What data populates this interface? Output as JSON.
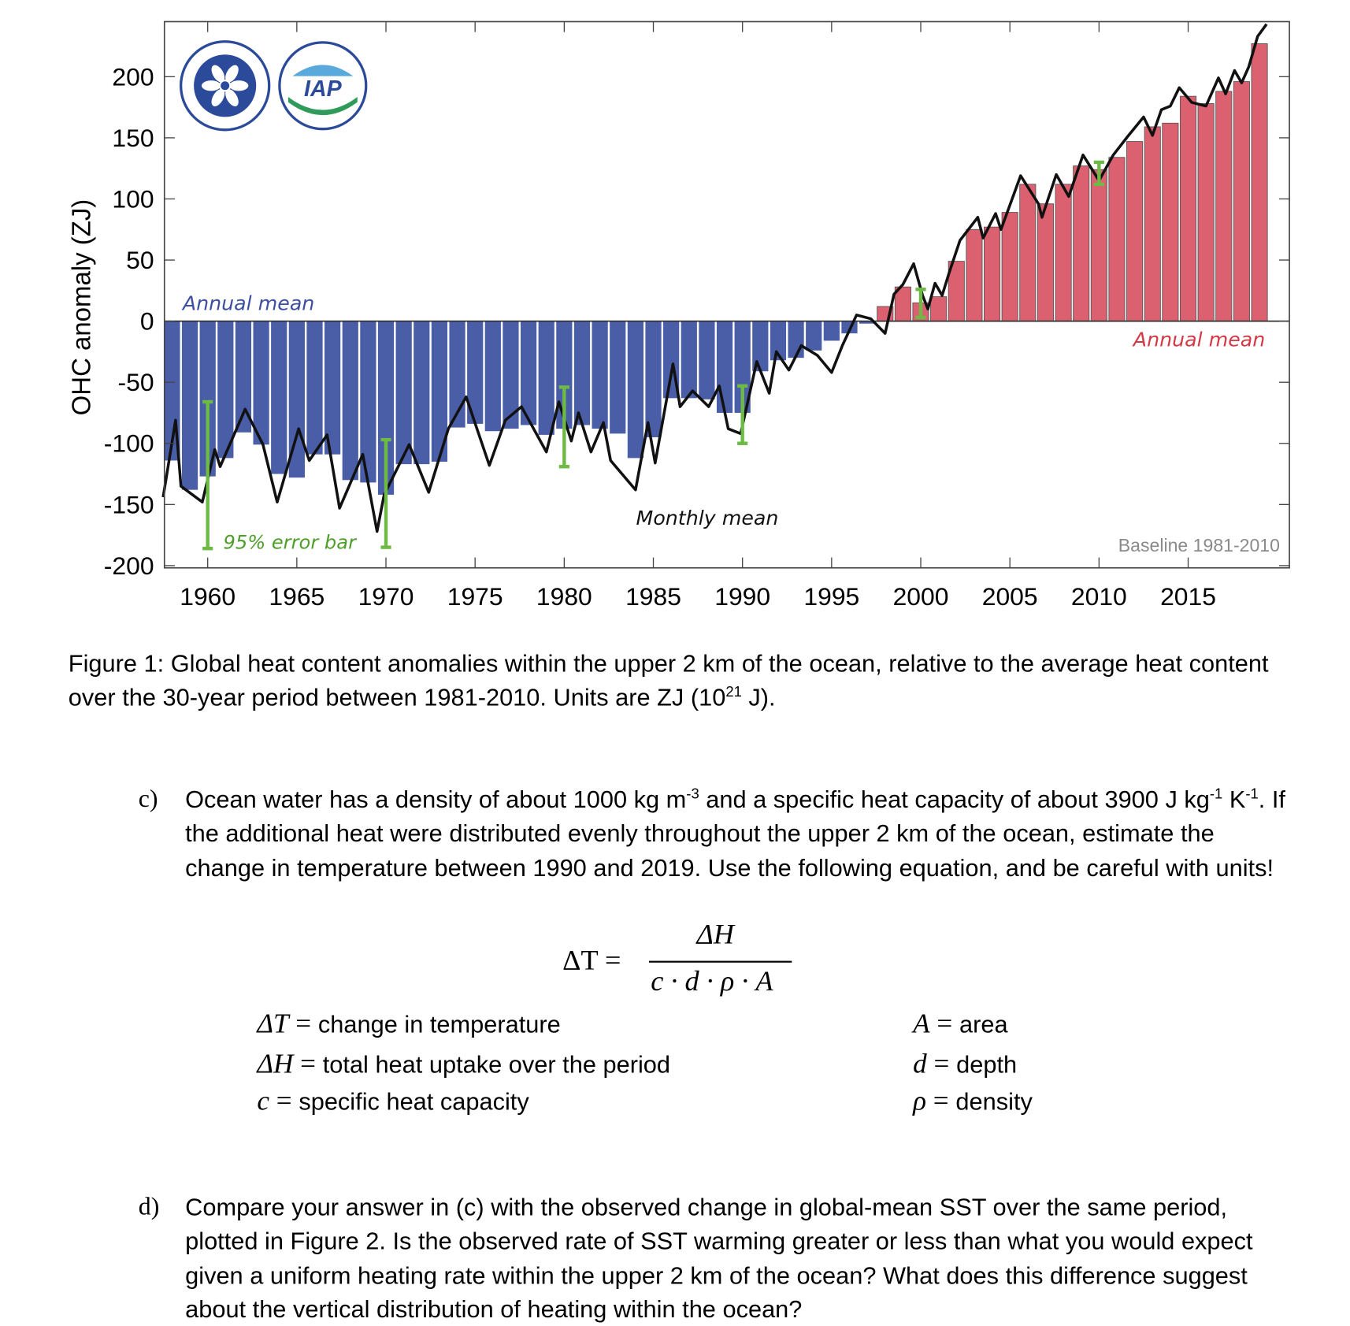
{
  "chart_data": {
    "type": "bar+line",
    "ylabel": "OHC anomaly (ZJ)",
    "ylim": [
      -200,
      245
    ],
    "yticks": [
      200,
      150,
      100,
      50,
      0,
      -50,
      -100,
      -150,
      -200
    ],
    "xticks": [
      1960,
      1965,
      1970,
      1975,
      1980,
      1985,
      1990,
      1995,
      2000,
      2005,
      2010,
      2015
    ],
    "xlim": [
      1957.5,
      2020.5
    ],
    "grid": false,
    "annotations": {
      "annual_mean_negative": "Annual mean",
      "annual_mean_positive": "Annual mean",
      "monthly_mean": "Monthly mean",
      "error_bar": "95% error bar",
      "baseline": "Baseline 1981-2010"
    },
    "annual_mean": {
      "years": [
        1958,
        1959,
        1960,
        1961,
        1962,
        1963,
        1964,
        1965,
        1966,
        1967,
        1968,
        1969,
        1970,
        1971,
        1972,
        1973,
        1974,
        1975,
        1976,
        1977,
        1978,
        1979,
        1980,
        1981,
        1982,
        1983,
        1984,
        1985,
        1986,
        1987,
        1988,
        1989,
        1990,
        1991,
        1992,
        1993,
        1994,
        1995,
        1996,
        1997,
        1998,
        1999,
        2000,
        2001,
        2002,
        2003,
        2004,
        2005,
        2006,
        2007,
        2008,
        2009,
        2010,
        2011,
        2012,
        2013,
        2014,
        2015,
        2016,
        2017,
        2018,
        2019
      ],
      "values": [
        -114,
        -138,
        -127,
        -112,
        -91,
        -101,
        -125,
        -128,
        -109,
        -109,
        -130,
        -132,
        -142,
        -117,
        -117,
        -115,
        -87,
        -84,
        -90,
        -88,
        -85,
        -93,
        -88,
        -85,
        -88,
        -92,
        -112,
        -95,
        -63,
        -63,
        -64,
        -75,
        -75,
        -41,
        -32,
        -30,
        -24,
        -16,
        -10,
        -2,
        12,
        28,
        15,
        20,
        49,
        75,
        77,
        89,
        112,
        96,
        112,
        127,
        124,
        134,
        147,
        159,
        162,
        184,
        178,
        188,
        196,
        227
      ]
    },
    "monthly_mean": {
      "x": [
        1957.5,
        1958.2,
        1958.5,
        1959.7,
        1960.4,
        1960.7,
        1962.1,
        1963.1,
        1963.9,
        1965.1,
        1965.7,
        1966.7,
        1967.4,
        1968.7,
        1969.5,
        1969.9,
        1971.3,
        1972.4,
        1973.5,
        1974.5,
        1975.8,
        1976.7,
        1977.6,
        1979.0,
        1979.7,
        1980.4,
        1980.8,
        1981.5,
        1982.2,
        1982.6,
        1984.0,
        1984.7,
        1985.1,
        1986.1,
        1986.5,
        1987.2,
        1988.1,
        1988.7,
        1989.2,
        1989.9,
        1990.8,
        1991.5,
        1991.9,
        1992.6,
        1993.3,
        1994.2,
        1995.0,
        1995.6,
        1996.4,
        1997.2,
        1998.0,
        1998.5,
        1999.0,
        1999.6,
        2000.1,
        2000.4,
        2000.8,
        2001.2,
        2001.6,
        2002.2,
        2003.2,
        2003.5,
        2004.2,
        2004.5,
        2005.6,
        2006.6,
        2006.8,
        2007.6,
        2008.3,
        2009.1,
        2010.0,
        2010.8,
        2011.6,
        2012.5,
        2013.0,
        2013.5,
        2014.0,
        2014.5,
        2015.2,
        2016.0,
        2016.7,
        2017.1,
        2017.6,
        2018.0,
        2018.4,
        2018.9,
        2019.4
      ],
      "values": [
        -144,
        -81,
        -135,
        -148,
        -105,
        -119,
        -72,
        -101,
        -148,
        -88,
        -114,
        -93,
        -153,
        -109,
        -172,
        -142,
        -101,
        -140,
        -88,
        -62,
        -118,
        -81,
        -70,
        -107,
        -66,
        -98,
        -75,
        -107,
        -83,
        -114,
        -138,
        -83,
        -116,
        -35,
        -70,
        -57,
        -70,
        -53,
        -88,
        -92,
        -33,
        -59,
        -25,
        -40,
        -20,
        -28,
        -42,
        -20,
        5,
        2,
        -10,
        22,
        30,
        47,
        21,
        10,
        31,
        21,
        40,
        66,
        85,
        68,
        88,
        75,
        119,
        96,
        85,
        120,
        102,
        136,
        115,
        136,
        151,
        167,
        152,
        173,
        176,
        191,
        179,
        176,
        199,
        186,
        205,
        195,
        208,
        233,
        243
      ]
    },
    "error_bars_95": [
      {
        "year": 1960,
        "low": -186,
        "high": -66
      },
      {
        "year": 1970,
        "low": -185,
        "high": -97
      },
      {
        "year": 1980,
        "low": -119,
        "high": -54
      },
      {
        "year": 1990,
        "low": -100,
        "high": -53
      },
      {
        "year": 2000,
        "low": 3,
        "high": 26
      },
      {
        "year": 2010,
        "low": 112,
        "high": 130
      }
    ],
    "colors": {
      "negative": "#4a5ea8",
      "positive": "#db6170",
      "monthly": "#111111",
      "error_bar": "#6dbb45",
      "blue_label": "#3b4ea0",
      "red_label": "#d33a48"
    },
    "logos": [
      "Chinese Academy of Sciences",
      "IAP CAS"
    ]
  },
  "caption": {
    "pre": "Figure 1: Global heat content anomalies within the upper 2 km of the ocean, relative to the average heat content over the 30-year period between 1981-2010. Units are ZJ (10",
    "sup": "21",
    "post": " J)."
  },
  "question_c": {
    "label": "c)",
    "t1": "Ocean water has a density of about 1000 kg m",
    "s1": "-3",
    "t2": " and a specific heat capacity of about 3900 J kg",
    "s2": "-1",
    "t3": " K",
    "s3": "-1",
    "t4": ". If the additional heat were distributed evenly throughout the upper 2 km of the ocean, estimate the change in temperature between 1990 and 2019. Use the following equation, and be careful with units!"
  },
  "equation": {
    "lhs": "ΔT =",
    "numerator": "ΔH",
    "denominator": "c · d · ρ · A"
  },
  "definitions": [
    {
      "sym": "ΔT",
      "desc": "change in temperature"
    },
    {
      "sym": "ΔH",
      "desc": "total heat uptake over the period"
    },
    {
      "sym": "c",
      "desc": "specific heat capacity"
    },
    {
      "sym": "A",
      "desc": "area"
    },
    {
      "sym": "d",
      "desc": "depth"
    },
    {
      "sym": "ρ",
      "desc": "density"
    }
  ],
  "equals": "=",
  "question_d": {
    "label": "d)",
    "text": "Compare your answer in (c) with the observed change in global-mean SST over the same period, plotted in Figure 2. Is the observed rate of SST warming greater or less than what you would expect given a uniform heating rate within the upper 2 km of the ocean? What does this difference suggest about the vertical distribution of heating within the ocean?"
  }
}
